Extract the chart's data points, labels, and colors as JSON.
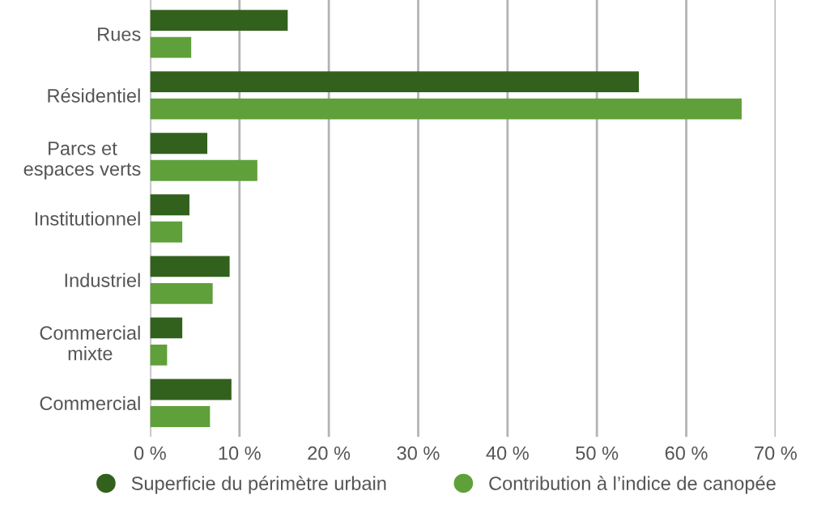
{
  "chart_data": {
    "type": "bar",
    "orientation": "horizontal",
    "categories": [
      "Rues",
      "Résidentiel",
      "Parcs et\nespaces verts",
      "Institutionnel",
      "Industriel",
      "Commercial\nmixte",
      "Commercial"
    ],
    "series": [
      {
        "name": "Superficie du périmètre urbain",
        "color": "#32611d",
        "values": [
          15.4,
          54.7,
          6.4,
          4.4,
          8.9,
          3.6,
          9.1
        ]
      },
      {
        "name": "Contribution à l’indice de canopée",
        "color": "#5fa03a",
        "values": [
          4.6,
          66.2,
          12.0,
          3.6,
          7.0,
          1.9,
          6.7
        ]
      }
    ],
    "xlim": [
      0,
      70
    ],
    "xticks": [
      {
        "value": 0,
        "label": "0 %"
      },
      {
        "value": 10,
        "label": "10 %"
      },
      {
        "value": 20,
        "label": "20 %"
      },
      {
        "value": 30,
        "label": "30 %"
      },
      {
        "value": 40,
        "label": "40 %"
      },
      {
        "value": 50,
        "label": "50 %"
      },
      {
        "value": 60,
        "label": "60 %"
      },
      {
        "value": 70,
        "label": "70 %"
      }
    ],
    "grid": "x",
    "legend": "bottom"
  }
}
